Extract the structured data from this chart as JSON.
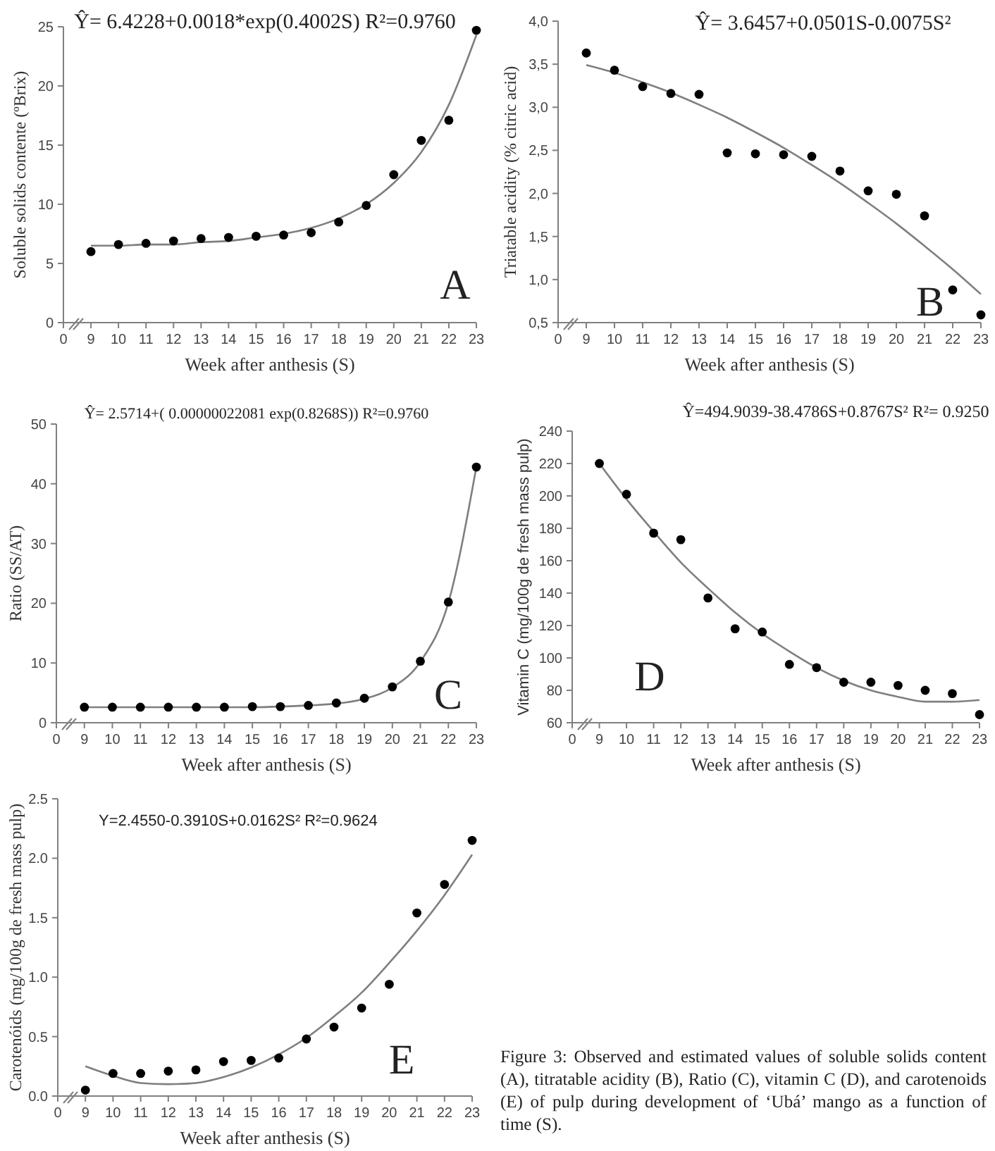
{
  "chart_data": [
    {
      "type": "scatter",
      "xlabel": "Week after anthesis (S)",
      "ylabel": "Soluble solids contente (ºBrix)",
      "categories": [
        "0",
        "9",
        "10",
        "11",
        "12",
        "13",
        "14",
        "15",
        "16",
        "17",
        "18",
        "19",
        "20",
        "21",
        "22",
        "23"
      ],
      "ylim": [
        0,
        25
      ],
      "yticks": [
        0,
        5,
        10,
        15,
        20,
        25
      ],
      "series": [
        {
          "color": "#000000",
          "marker": "circle",
          "values": [
            null,
            6.0,
            6.6,
            6.7,
            6.9,
            7.1,
            7.2,
            7.3,
            7.4,
            7.6,
            8.5,
            9.9,
            12.5,
            15.4,
            17.1,
            24.7
          ]
        },
        {
          "type": "line",
          "marker": "none",
          "color": "#7f7f7f",
          "values": [
            null,
            6.5,
            6.5,
            6.6,
            6.6,
            6.8,
            6.9,
            7.2,
            7.5,
            8.0,
            8.8,
            10.0,
            11.8,
            14.4,
            18.4,
            24.3
          ]
        }
      ],
      "annotations": [
        "Ŷ= 6.4228+0.0018*exp(0.4002S)  R²=0.9760",
        "A"
      ]
    },
    {
      "type": "scatter",
      "xlabel": "Week after anthesis (S)",
      "ylabel": "Triatable acidity (% citric acid)",
      "categories": [
        "0",
        "9",
        "10",
        "11",
        "12",
        "13",
        "14",
        "15",
        "16",
        "17",
        "18",
        "19",
        "20",
        "21",
        "22",
        "23"
      ],
      "ylim": [
        0.5,
        4.0
      ],
      "yticks": [
        {
          "value": 0.5,
          "label": "0,5"
        },
        {
          "value": 1,
          "label": "1,0"
        },
        {
          "value": 1.5,
          "label": "1,5"
        },
        {
          "value": 2,
          "label": "2,0"
        },
        {
          "value": 2.5,
          "label": "2,5"
        },
        {
          "value": 3,
          "label": "3,0"
        },
        {
          "value": 3.5,
          "label": "3,5"
        },
        {
          "value": 4,
          "label": "4,0"
        }
      ],
      "series": [
        {
          "color": "#000000",
          "marker": "circle",
          "values": [
            null,
            3.63,
            3.43,
            3.24,
            3.16,
            3.15,
            2.47,
            2.46,
            2.45,
            2.43,
            2.26,
            2.03,
            1.99,
            1.74,
            0.88,
            0.59
          ]
        },
        {
          "type": "line",
          "marker": "none",
          "color": "#7f7f7f",
          "values": [
            null,
            3.49,
            3.4,
            3.29,
            3.17,
            3.03,
            2.88,
            2.71,
            2.53,
            2.33,
            2.12,
            1.89,
            1.65,
            1.39,
            1.12,
            0.83
          ]
        }
      ],
      "annotations": [
        "Ŷ= 3.6457+0.0501S-0.0075S²",
        "B"
      ]
    },
    {
      "type": "scatter",
      "xlabel": "Week after anthesis (S)",
      "ylabel": "Ratio (SS/AT)",
      "categories": [
        "0",
        "9",
        "10",
        "11",
        "12",
        "13",
        "14",
        "15",
        "16",
        "17",
        "18",
        "19",
        "20",
        "21",
        "22",
        "23"
      ],
      "ylim": [
        0,
        50
      ],
      "yticks": [
        0,
        10,
        20,
        30,
        40,
        50
      ],
      "series": [
        {
          "color": "#000000",
          "marker": "circle",
          "values": [
            null,
            2.6,
            2.6,
            2.6,
            2.6,
            2.6,
            2.6,
            2.7,
            2.7,
            2.9,
            3.3,
            4.1,
            6.0,
            10.3,
            20.2,
            42.8
          ]
        },
        {
          "type": "line",
          "marker": "none",
          "color": "#7f7f7f",
          "values": [
            null,
            2.6,
            2.6,
            2.6,
            2.6,
            2.6,
            2.6,
            2.6,
            2.7,
            2.9,
            3.2,
            4.0,
            5.9,
            10.2,
            20.1,
            42.8
          ]
        }
      ],
      "annotations": [
        "Ŷ= 2.5714+( 0.00000022081 exp(0.8268S))  R²=0.9760",
        "C"
      ]
    },
    {
      "type": "scatter",
      "xlabel": "Week after anthesis (S)",
      "ylabel": "Vitamin C (mg/100g de fresh mass pulp)",
      "categories": [
        "0",
        "9",
        "10",
        "11",
        "12",
        "13",
        "14",
        "15",
        "16",
        "17",
        "18",
        "19",
        "20",
        "21",
        "22",
        "23"
      ],
      "ylim": [
        60,
        240
      ],
      "yticks": [
        60,
        80,
        100,
        120,
        140,
        160,
        180,
        200,
        220,
        240
      ],
      "series": [
        {
          "color": "#000000",
          "marker": "circle",
          "values": [
            null,
            220,
            201,
            177,
            173,
            137,
            118,
            116,
            96,
            94,
            85,
            85,
            83,
            80,
            78,
            65
          ]
        },
        {
          "type": "line",
          "marker": "none",
          "color": "#7f7f7f",
          "values": [
            null,
            220,
            198,
            178,
            159,
            143,
            128,
            115,
            104,
            94,
            86,
            80,
            76,
            73,
            73,
            74
          ]
        }
      ],
      "annotations": [
        "Ŷ=494.9039-38.4786S+0.8767S²   R²= 0.9250",
        "D"
      ]
    },
    {
      "type": "scatter",
      "xlabel": "Week after anthesis (S)",
      "ylabel": "Carotenóids (mg/100g de fresh mass pulp)",
      "categories": [
        "0",
        "9",
        "10",
        "11",
        "12",
        "13",
        "14",
        "15",
        "16",
        "17",
        "18",
        "19",
        "20",
        "21",
        "22",
        "23"
      ],
      "ylim": [
        0,
        2.5
      ],
      "yticks": [
        {
          "value": 0,
          "label": "0.0"
        },
        {
          "value": 0.5,
          "label": "0.5"
        },
        {
          "value": 1,
          "label": "1.0"
        },
        {
          "value": 1.5,
          "label": "1.5"
        },
        {
          "value": 2,
          "label": "2.0"
        },
        {
          "value": 2.5,
          "label": "2.5"
        }
      ],
      "series": [
        {
          "color": "#000000",
          "marker": "circle",
          "values": [
            null,
            0.05,
            0.19,
            0.19,
            0.21,
            0.22,
            0.29,
            0.3,
            0.32,
            0.48,
            0.58,
            0.74,
            0.94,
            1.54,
            1.78,
            2.15
          ]
        },
        {
          "type": "line",
          "marker": "none",
          "color": "#7f7f7f",
          "values": [
            null,
            0.25,
            0.17,
            0.11,
            0.1,
            0.11,
            0.16,
            0.24,
            0.35,
            0.49,
            0.67,
            0.87,
            1.12,
            1.39,
            1.69,
            2.03
          ]
        }
      ],
      "annotations": [
        "Y=2.4550-0.3910S+0.0162S²  R²=0.9624",
        "E",
        "Figure 3: Observed and estimated values   of soluble solids content (A), titratable acidity (B), Ratio (C), vitamin C (D), and carotenoids (E) of pulp during development of ‘Ubá’ mango as a function of time (S)."
      ]
    }
  ]
}
